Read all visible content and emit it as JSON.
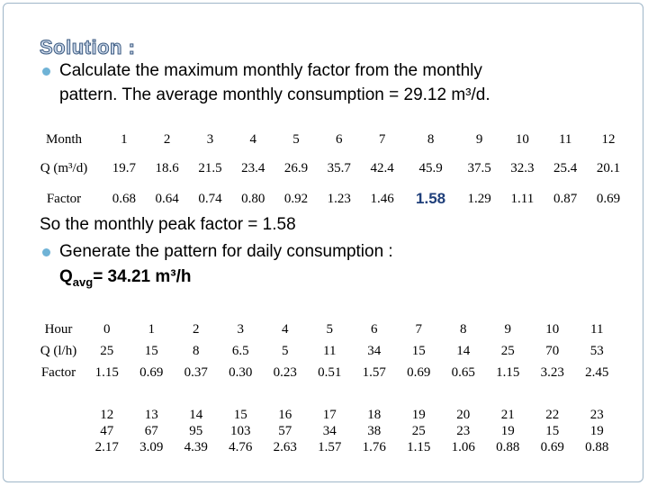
{
  "heading": "Solution :",
  "bullet1": {
    "line1": "Calculate the maximum monthly factor from the monthly",
    "line2": "pattern.  The average monthly consumption = 29.12 m³/d."
  },
  "monthly_table": {
    "row_labels": [
      "Month",
      "Q (m³/d)",
      "Factor"
    ],
    "months": [
      "1",
      "2",
      "3",
      "4",
      "5",
      "6",
      "7",
      "8",
      "9",
      "10",
      "11",
      "12"
    ],
    "q": [
      "19.7",
      "18.6",
      "21.5",
      "23.4",
      "26.9",
      "35.7",
      "42.4",
      "45.9",
      "37.5",
      "32.3",
      "25.4",
      "20.1"
    ],
    "factor": [
      "0.68",
      "0.64",
      "0.74",
      "0.80",
      "0.92",
      "1.23",
      "1.46",
      "1.58",
      "1.29",
      "1.11",
      "0.87",
      "0.69"
    ]
  },
  "peak_text": "So the monthly peak factor = 1.58",
  "bullet2": {
    "line1": "Generate the pattern for daily consumption :",
    "q_prefix": "Q",
    "q_sub": "avg",
    "q_value": "= 34.21 m³/h"
  },
  "hourly_table": {
    "row_labels": [
      "Hour",
      "Q (l/h)",
      "Factor"
    ],
    "hours": [
      "0",
      "1",
      "2",
      "3",
      "4",
      "5",
      "6",
      "7",
      "8",
      "9",
      "10",
      "11"
    ],
    "q": [
      "25",
      "15",
      "8",
      "6.5",
      "5",
      "11",
      "34",
      "15",
      "14",
      "25",
      "70",
      "53"
    ],
    "factor": [
      "1.15",
      "0.69",
      "0.37",
      "0.30",
      "0.23",
      "0.51",
      "1.57",
      "0.69",
      "0.65",
      "1.15",
      "3.23",
      "2.45"
    ]
  },
  "hourly_table2": {
    "hours": [
      "12",
      "13",
      "14",
      "15",
      "16",
      "17",
      "18",
      "19",
      "20",
      "21",
      "22",
      "23"
    ],
    "q": [
      "47",
      "67",
      "95",
      "103",
      "57",
      "34",
      "38",
      "25",
      "23",
      "19",
      "15",
      "19"
    ],
    "factor": [
      "2.17",
      "3.09",
      "4.39",
      "4.76",
      "2.63",
      "1.57",
      "1.76",
      "1.15",
      "1.06",
      "0.88",
      "0.69",
      "0.88"
    ]
  },
  "colors": {
    "bullet": "#6fb3d6",
    "heading_fill": "#c9d6e8",
    "heading_stroke": "#3b5a80",
    "highlight": "#1f3f7a"
  }
}
